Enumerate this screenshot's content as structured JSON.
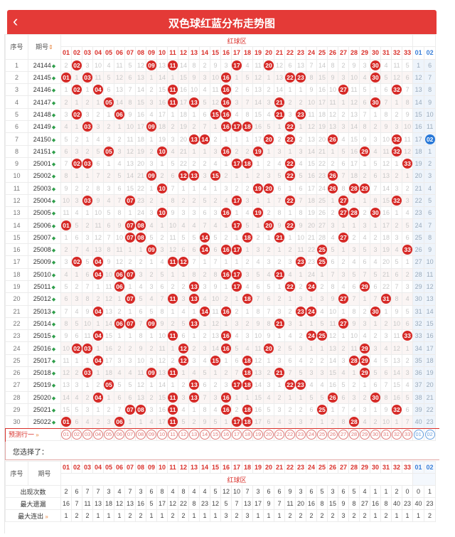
{
  "header": {
    "title": "双色球红蓝分布走势图",
    "back": "‹"
  },
  "table": {
    "col_seq": "序号",
    "col_issue": "期号",
    "sort_icon": "⇕",
    "zone_red": "红球区",
    "red_numbers": [
      "01",
      "02",
      "03",
      "04",
      "05",
      "06",
      "07",
      "08",
      "09",
      "10",
      "11",
      "12",
      "13",
      "14",
      "15",
      "16",
      "17",
      "18",
      "19",
      "20",
      "21",
      "22",
      "23",
      "24",
      "25",
      "26",
      "27",
      "28",
      "29",
      "30",
      "31",
      "32",
      "33"
    ],
    "blue_numbers": [
      "01",
      "02"
    ]
  },
  "rows": [
    {
      "seq": "1",
      "issue": "24144",
      "reds": [
        2,
        9,
        11,
        17,
        20,
        30
      ],
      "blue": [
        "1",
        "6"
      ]
    },
    {
      "seq": "2",
      "issue": "24145",
      "reds": [
        1,
        3,
        16,
        22,
        23,
        30
      ],
      "blue": [
        "12",
        "7"
      ]
    },
    {
      "seq": "3",
      "issue": "24146",
      "reds": [
        2,
        4,
        11,
        16,
        27,
        32
      ],
      "blue": [
        "13",
        "8"
      ]
    },
    {
      "seq": "4",
      "issue": "24147",
      "reds": [
        5,
        11,
        13,
        16,
        21,
        30
      ],
      "blue": [
        "14",
        "9"
      ]
    },
    {
      "seq": "5",
      "issue": "24148",
      "reds": [
        2,
        6,
        15,
        16,
        21,
        23
      ],
      "blue": [
        "15",
        "10"
      ]
    },
    {
      "seq": "6",
      "issue": "24149",
      "reds": [
        3,
        9,
        16,
        17,
        18,
        22
      ],
      "blue": [
        "16",
        "11"
      ]
    },
    {
      "seq": "7",
      "issue": "24150",
      "reds": [
        13,
        14,
        20,
        22,
        26,
        32
      ],
      "blue": [
        "17",
        "02"
      ]
    },
    {
      "seq": "8",
      "issue": "24151",
      "reds": [
        5,
        10,
        16,
        19,
        29,
        32
      ],
      "blue": [
        "18",
        "1"
      ]
    },
    {
      "seq": "9",
      "issue": "25001",
      "reds": [
        2,
        3,
        17,
        18,
        22,
        33
      ],
      "blue": [
        "19",
        "2"
      ]
    },
    {
      "seq": "10",
      "issue": "25002",
      "reds": [
        9,
        12,
        13,
        15,
        22,
        26
      ],
      "blue": [
        "20",
        "3"
      ]
    },
    {
      "seq": "11",
      "issue": "25003",
      "reds": [
        10,
        19,
        20,
        26,
        28,
        29
      ],
      "blue": [
        "21",
        "4"
      ]
    },
    {
      "seq": "12",
      "issue": "25004",
      "reds": [
        3,
        7,
        17,
        22,
        27,
        32
      ],
      "blue": [
        "22",
        "5"
      ]
    },
    {
      "seq": "13",
      "issue": "25005",
      "reds": [
        10,
        16,
        19,
        27,
        28,
        30
      ],
      "blue": [
        "23",
        "6"
      ]
    },
    {
      "seq": "14",
      "issue": "25006",
      "reds": [
        1,
        7,
        8,
        17,
        20,
        22
      ],
      "blue": [
        "24",
        "7"
      ]
    },
    {
      "seq": "15",
      "issue": "25007",
      "reds": [
        7,
        8,
        14,
        18,
        21,
        27
      ],
      "blue": [
        "25",
        "8"
      ]
    },
    {
      "seq": "16",
      "issue": "25008",
      "reds": [
        9,
        14,
        16,
        17,
        25,
        33
      ],
      "blue": [
        "26",
        "9"
      ]
    },
    {
      "seq": "17",
      "issue": "25009",
      "reds": [
        2,
        4,
        11,
        12,
        23,
        25
      ],
      "blue": [
        "27",
        "10"
      ]
    },
    {
      "seq": "18",
      "issue": "25010",
      "reds": [
        4,
        6,
        7,
        16,
        17,
        21
      ],
      "blue": [
        "28",
        "11"
      ]
    },
    {
      "seq": "19",
      "issue": "25011",
      "reds": [
        6,
        13,
        17,
        22,
        24,
        29
      ],
      "blue": [
        "29",
        "12"
      ]
    },
    {
      "seq": "20",
      "issue": "25012",
      "reds": [
        7,
        11,
        13,
        18,
        27,
        31
      ],
      "blue": [
        "30",
        "13"
      ]
    },
    {
      "seq": "21",
      "issue": "25013",
      "reds": [
        4,
        14,
        16,
        23,
        24,
        30
      ],
      "blue": [
        "31",
        "14"
      ]
    },
    {
      "seq": "22",
      "issue": "25014",
      "reds": [
        6,
        7,
        9,
        13,
        21,
        27
      ],
      "blue": [
        "32",
        "15"
      ]
    },
    {
      "seq": "23",
      "issue": "25015",
      "reds": [
        4,
        11,
        16,
        24,
        25,
        33
      ],
      "blue": [
        "33",
        "16"
      ]
    },
    {
      "seq": "24",
      "issue": "25016",
      "reds": [
        2,
        3,
        12,
        16,
        20,
        29
      ],
      "blue": [
        "34",
        "17"
      ]
    },
    {
      "seq": "25",
      "issue": "25017",
      "reds": [
        4,
        12,
        15,
        18,
        28,
        29
      ],
      "blue": [
        "35",
        "18"
      ]
    },
    {
      "seq": "26",
      "issue": "25018",
      "reds": [
        3,
        9,
        11,
        18,
        21,
        29
      ],
      "blue": [
        "36",
        "19"
      ]
    },
    {
      "seq": "27",
      "issue": "25019",
      "reds": [
        5,
        13,
        17,
        18,
        22,
        23
      ],
      "blue": [
        "37",
        "20"
      ]
    },
    {
      "seq": "28",
      "issue": "25020",
      "reds": [
        4,
        11,
        13,
        16,
        26,
        30
      ],
      "blue": [
        "38",
        "21"
      ]
    },
    {
      "seq": "29",
      "issue": "25021",
      "reds": [
        7,
        8,
        11,
        16,
        18,
        25,
        32
      ],
      "blue": [
        "39",
        "22"
      ]
    },
    {
      "seq": "30",
      "issue": "25022",
      "reds": [
        1,
        6,
        11,
        17,
        18,
        28
      ],
      "blue": [
        "40",
        "23"
      ]
    }
  ],
  "predict": {
    "label": "预测行一",
    "chevron": "»"
  },
  "selection": {
    "label": "您选择了："
  },
  "stats": {
    "zone_red": "红球区",
    "rows": [
      {
        "label": "出现次数",
        "values": [
          "2",
          "6",
          "7",
          "7",
          "3",
          "4",
          "7",
          "3",
          "6",
          "8",
          "4",
          "8",
          "4",
          "4",
          "5",
          "12",
          "10",
          "7",
          "3",
          "6",
          "6",
          "9",
          "3",
          "6",
          "5",
          "3",
          "6",
          "5",
          "4",
          "1",
          "1",
          "2",
          "0"
        ],
        "blue": [
          "0",
          "1"
        ]
      },
      {
        "label": "最大遗漏",
        "values": [
          "16",
          "7",
          "11",
          "13",
          "18",
          "12",
          "13",
          "16",
          "5",
          "17",
          "12",
          "22",
          "8",
          "23",
          "12",
          "5",
          "7",
          "13",
          "17",
          "9",
          "7",
          "11",
          "20",
          "16",
          "8",
          "15",
          "9",
          "8",
          "27",
          "16",
          "8",
          "40",
          "23"
        ],
        "blue": [
          "40",
          "23"
        ]
      },
      {
        "label": "最大连出",
        "values": [
          "1",
          "2",
          "2",
          "1",
          "1",
          "1",
          "2",
          "2",
          "1",
          "1",
          "2",
          "2",
          "1",
          "1",
          "1",
          "3",
          "2",
          "3",
          "1",
          "1",
          "1",
          "2",
          "2",
          "2",
          "2",
          "2",
          "3",
          "2",
          "2",
          "1",
          "2",
          "1",
          "1"
        ],
        "blue": [
          "1",
          "2"
        ]
      }
    ],
    "chevron": "»"
  },
  "colors": {
    "header": "#e43a37",
    "red_ball": "#d62a27",
    "blue_ball": "#2878d8"
  }
}
